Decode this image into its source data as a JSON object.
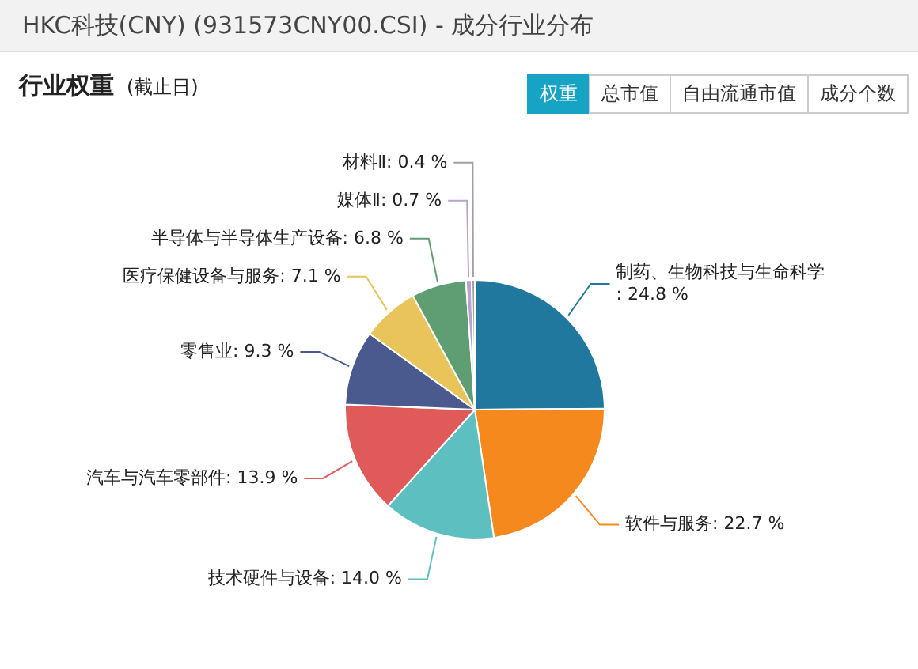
{
  "chart_data": {
    "type": "pie",
    "title": "HKC科技(CNY) (931573CNY00.CSI) - 成分行业分布",
    "subtitle": "行业权重",
    "annotations": [
      "(截止日)",
      "权重",
      "总市值",
      "自由流通市值",
      "成分个数"
    ],
    "categories": [
      "制药、生物科技与生命科学",
      "软件与服务",
      "技术硬件与设备",
      "汽车与汽车零部件",
      "零售业",
      "医疗保健设备与服务",
      "半导体与半导体生产设备",
      "媒体Ⅱ",
      "材料Ⅱ"
    ],
    "values": [
      24.8,
      22.7,
      14.0,
      13.9,
      9.3,
      7.1,
      6.8,
      0.7,
      0.4
    ],
    "colors": [
      "#21789f",
      "#f5891d",
      "#5ebfc1",
      "#e05a5a",
      "#4b5a8e",
      "#e8c45a",
      "#5f9e72",
      "#b9a3c9",
      "#a0a0a0"
    ],
    "value_labels": [
      ": 24.8 %",
      ": 22.7 %",
      ": 14.0 %",
      ": 13.9 %",
      ": 9.3 %",
      ": 7.1 %",
      ": 6.8 %",
      ": 0.7 %",
      ": 0.4 %"
    ],
    "legend": false
  }
}
